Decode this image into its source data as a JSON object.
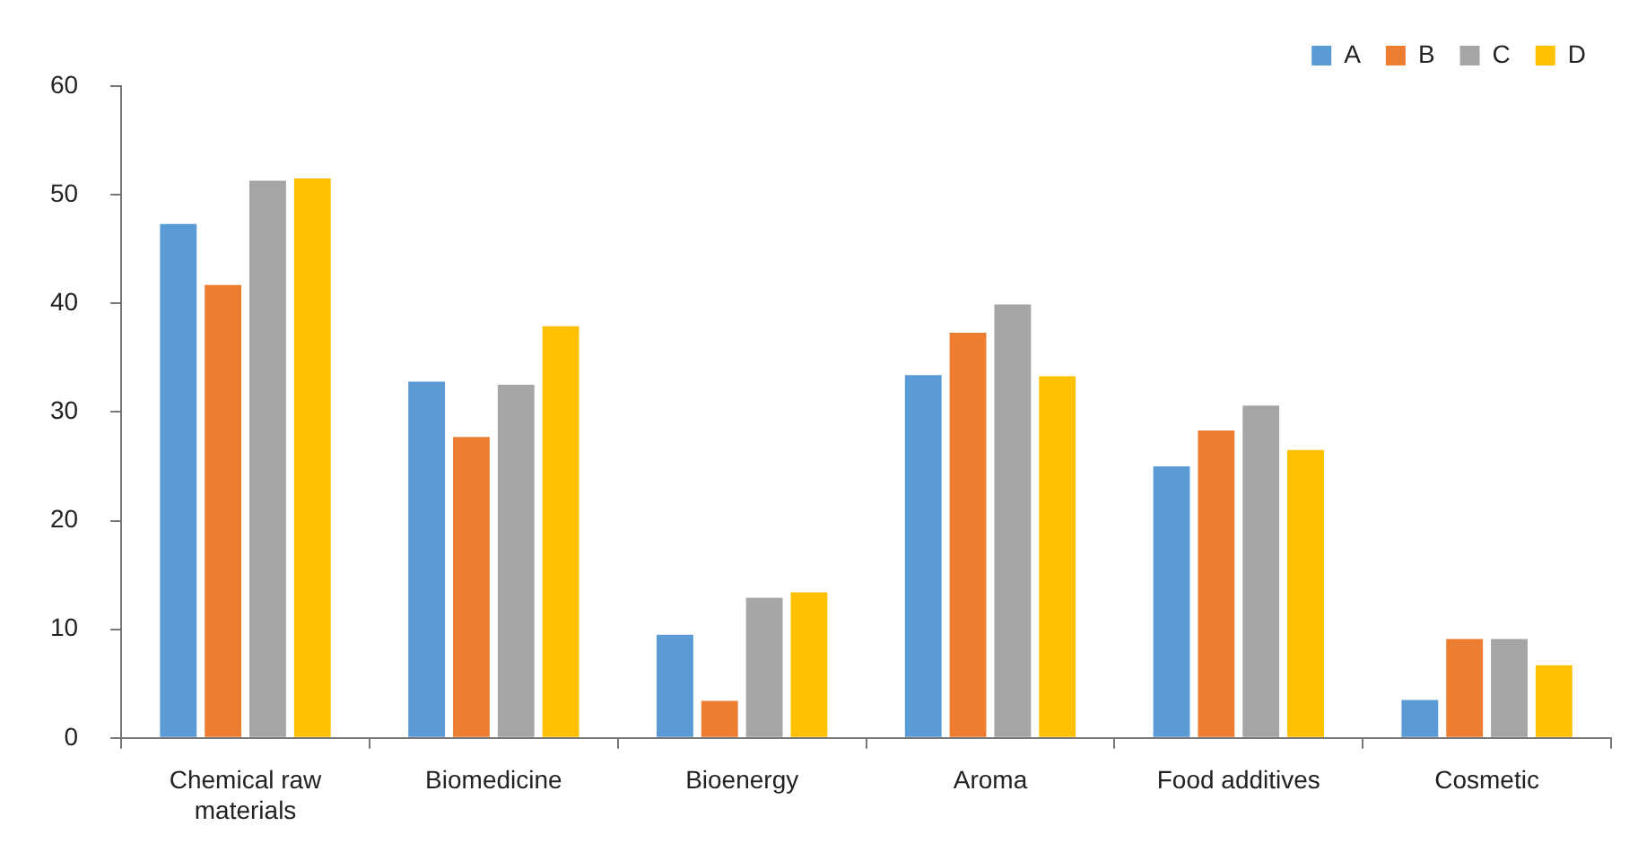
{
  "chart_data": {
    "type": "bar",
    "categories": [
      "Chemical raw materials",
      "Biomedicine",
      "Bioenergy",
      "Aroma",
      "Food additives",
      "Cosmetic"
    ],
    "series": [
      {
        "name": "A",
        "color": "#5b9bd5",
        "values": [
          47.3,
          32.8,
          9.5,
          33.4,
          25.0,
          3.5
        ]
      },
      {
        "name": "B",
        "color": "#ed7d31",
        "values": [
          41.7,
          27.7,
          3.4,
          37.3,
          28.3,
          9.1
        ]
      },
      {
        "name": "C",
        "color": "#a5a5a5",
        "values": [
          51.3,
          32.5,
          12.9,
          39.9,
          30.6,
          9.1
        ]
      },
      {
        "name": "D",
        "color": "#ffc000",
        "values": [
          51.5,
          37.9,
          13.4,
          33.3,
          26.5,
          6.7
        ]
      }
    ],
    "ylim": [
      0,
      60
    ],
    "yticks": [
      0,
      10,
      20,
      30,
      40,
      50,
      60
    ],
    "grid": false,
    "legend": "top right"
  }
}
